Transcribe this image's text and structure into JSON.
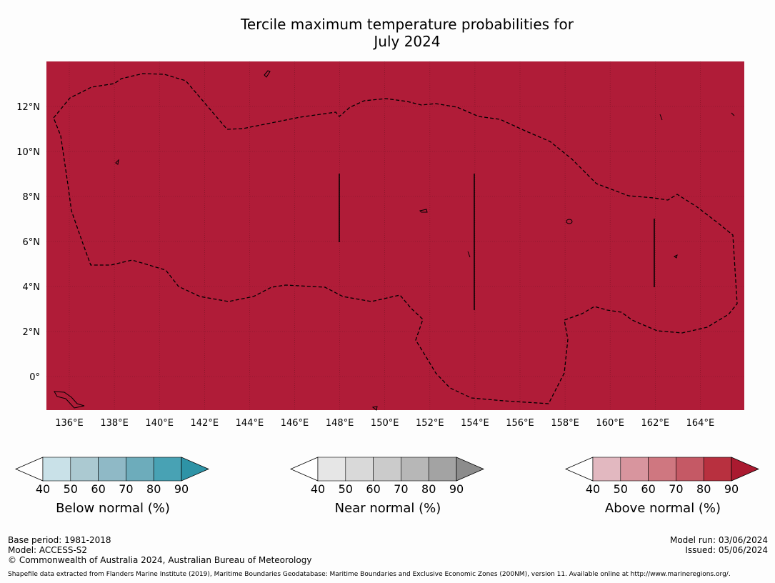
{
  "title": {
    "line1": "Tercile maximum temperature probabilities for",
    "line2": "July 2024"
  },
  "map": {
    "fill_color": "#b01c38",
    "lat_ticks": [
      "12°N",
      "10°N",
      "8°N",
      "6°N",
      "4°N",
      "2°N",
      "0°"
    ],
    "lon_ticks": [
      "136°E",
      "138°E",
      "140°E",
      "142°E",
      "144°E",
      "146°E",
      "148°E",
      "150°E",
      "152°E",
      "154°E",
      "156°E",
      "158°E",
      "160°E",
      "162°E",
      "164°E"
    ]
  },
  "colorbars": [
    {
      "id": "below",
      "label": "Below normal (%)",
      "ticks": [
        "40",
        "50",
        "60",
        "70",
        "80",
        "90"
      ],
      "colors": [
        "#c9e1e8",
        "#abc9d1",
        "#8fb9c6",
        "#6dacbb",
        "#48a2b4",
        "#2e93a6"
      ]
    },
    {
      "id": "near",
      "label": "Near normal (%)",
      "ticks": [
        "40",
        "50",
        "60",
        "70",
        "80",
        "90"
      ],
      "colors": [
        "#e6e6e6",
        "#d9d9d9",
        "#cbcbcb",
        "#b7b7b7",
        "#a3a3a3",
        "#8c8c8c"
      ]
    },
    {
      "id": "above",
      "label": "Above normal (%)",
      "ticks": [
        "40",
        "50",
        "60",
        "70",
        "80",
        "90"
      ],
      "colors": [
        "#e2b8c0",
        "#d8959e",
        "#cf7780",
        "#c55965",
        "#b8303f",
        "#aa1a30"
      ]
    }
  ],
  "footer": {
    "base_period": "Base period: 1981-2018",
    "model": "Model: ACCESS-S2",
    "copyright": "© Commonwealth of Australia 2024, Australian Bureau of Meteorology",
    "model_run": "Model run: 03/06/2024",
    "issued": "Issued: 05/06/2024",
    "shapefile": "Shapefile data extracted from Flanders Marine Institute (2019), Maritime Boundaries Geodatabase: Maritime Boundaries and Exclusive Economic Zones (200NM), version 11. Available online at http://www.marineregions.org/."
  }
}
